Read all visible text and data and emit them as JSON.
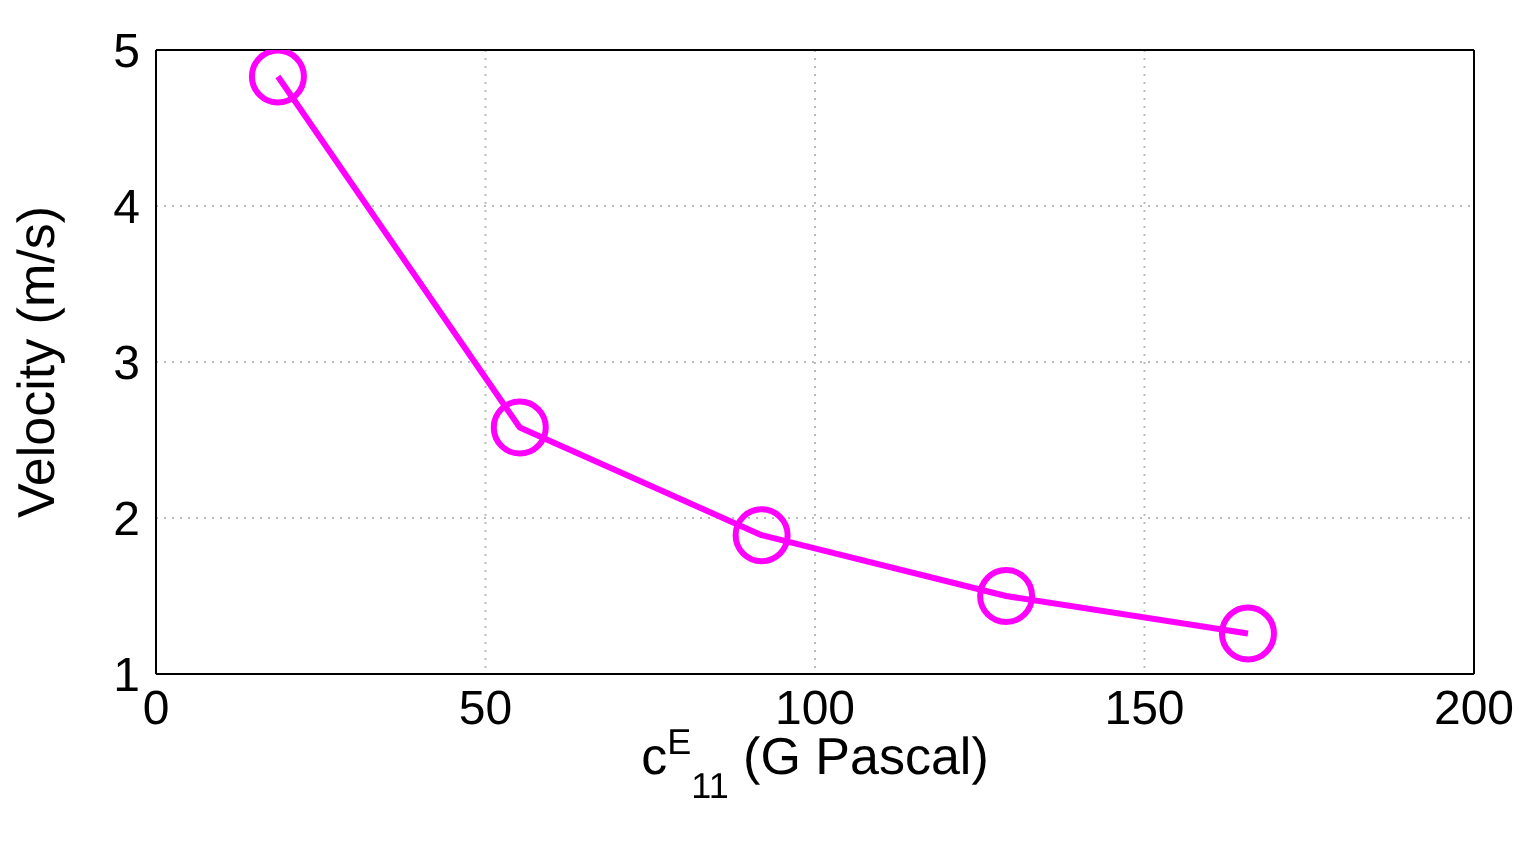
{
  "chart_data": {
    "type": "line",
    "xlabel": "c$^{E}$$_{11}$ (G Pascal)",
    "ylabel": "Velocity (m/s)",
    "x": [
      18.5,
      55.2,
      91.9,
      129,
      165.7
    ],
    "series": [
      {
        "color": "#ff00ff",
        "values": [
          4.83,
          2.58,
          1.89,
          1.5,
          1.26
        ]
      }
    ],
    "xlim": [
      0,
      200
    ],
    "xticks": [
      0,
      50,
      100,
      150,
      200
    ],
    "ylim": [
      1,
      5
    ],
    "yticks": [
      1,
      2,
      3,
      4,
      5
    ],
    "grid": true,
    "marker": "circle",
    "line_style": "solid",
    "legend": false
  }
}
